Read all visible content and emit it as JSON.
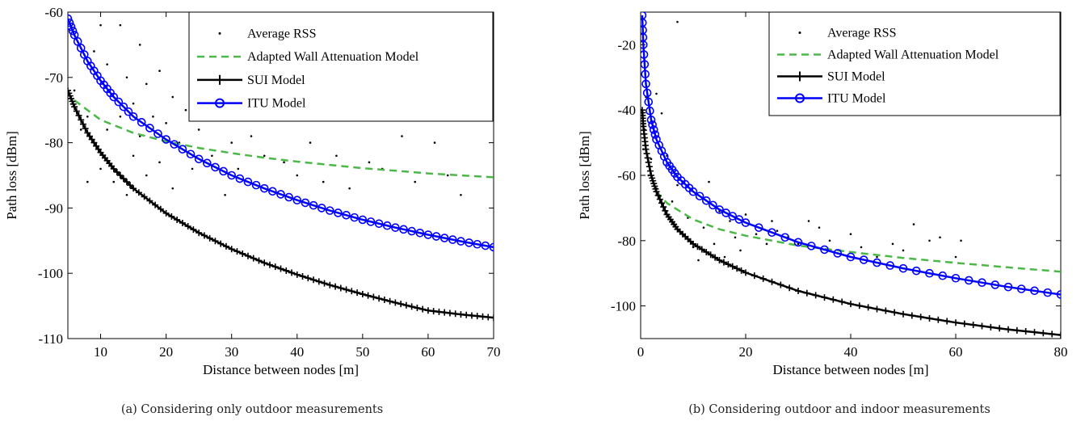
{
  "chart_data": [
    {
      "type": "line",
      "caption": "(a) Considering only outdoor measurements",
      "xlabel": "Distance between nodes [m]",
      "ylabel": "Path loss [dBm]",
      "xlim": [
        5,
        70
      ],
      "ylim": [
        -110,
        -60
      ],
      "xticks": [
        10,
        20,
        30,
        40,
        50,
        60,
        70
      ],
      "yticks": [
        -60,
        -70,
        -80,
        -90,
        -100,
        -110
      ],
      "legend_position": "top-right",
      "grid": false,
      "series": [
        {
          "name": "Average RSS",
          "kind": "scatter",
          "color": "#000000",
          "points": [
            [
              6,
              -72
            ],
            [
              7,
              -78
            ],
            [
              8,
              -76
            ],
            [
              8,
              -86
            ],
            [
              9,
              -66
            ],
            [
              9,
              -80
            ],
            [
              10,
              -62
            ],
            [
              10,
              -84
            ],
            [
              11,
              -68
            ],
            [
              11,
              -78
            ],
            [
              12,
              -73
            ],
            [
              12,
              -86
            ],
            [
              13,
              -62
            ],
            [
              13,
              -76
            ],
            [
              14,
              -70
            ],
            [
              14,
              -88
            ],
            [
              15,
              -74
            ],
            [
              15,
              -82
            ],
            [
              16,
              -65
            ],
            [
              16,
              -79
            ],
            [
              17,
              -71
            ],
            [
              17,
              -85
            ],
            [
              18,
              -76
            ],
            [
              19,
              -69
            ],
            [
              19,
              -83
            ],
            [
              20,
              -77
            ],
            [
              21,
              -73
            ],
            [
              21,
              -87
            ],
            [
              22,
              -80
            ],
            [
              23,
              -75
            ],
            [
              24,
              -84
            ],
            [
              25,
              -78
            ],
            [
              26,
              -73
            ],
            [
              27,
              -82
            ],
            [
              28,
              -76
            ],
            [
              29,
              -88
            ],
            [
              30,
              -80
            ],
            [
              31,
              -84
            ],
            [
              33,
              -79
            ],
            [
              35,
              -82
            ],
            [
              36,
              -76
            ],
            [
              38,
              -83
            ],
            [
              40,
              -85
            ],
            [
              42,
              -80
            ],
            [
              44,
              -86
            ],
            [
              46,
              -82
            ],
            [
              48,
              -87
            ],
            [
              51,
              -83
            ],
            [
              53,
              -84
            ],
            [
              56,
              -79
            ],
            [
              58,
              -86
            ],
            [
              61,
              -80
            ],
            [
              63,
              -85
            ],
            [
              65,
              -88
            ]
          ]
        },
        {
          "name": "Adapted Wall Attenuation Model",
          "kind": "dashed",
          "color": "#4cb848",
          "x": [
            6,
            10,
            15,
            20,
            25,
            30,
            35,
            40,
            45,
            50,
            55,
            60,
            65,
            70
          ],
          "y": [
            -73.5,
            -76.5,
            -78.5,
            -79.8,
            -80.8,
            -81.6,
            -82.3,
            -82.9,
            -83.4,
            -83.9,
            -84.3,
            -84.7,
            -85.0,
            -85.3
          ]
        },
        {
          "name": "SUI Model",
          "kind": "line-plus",
          "color": "#000000",
          "x": [
            5,
            6,
            8,
            10,
            12,
            15,
            20,
            25,
            30,
            35,
            40,
            45,
            50,
            55,
            60,
            65,
            70
          ],
          "y": [
            -72,
            -74.5,
            -78.5,
            -81.5,
            -84,
            -87,
            -90.8,
            -93.8,
            -96.3,
            -98.4,
            -100.2,
            -101.8,
            -103.2,
            -104.5,
            -105.7,
            -106.3,
            -106.8
          ]
        },
        {
          "name": "ITU Model",
          "kind": "line-circle",
          "color": "#0000ff",
          "x": [
            5,
            6,
            8,
            10,
            12,
            15,
            20,
            25,
            30,
            35,
            40,
            45,
            50,
            55,
            60,
            65,
            70
          ],
          "y": [
            -61,
            -63.5,
            -67.5,
            -70.5,
            -73,
            -76,
            -79.5,
            -82.5,
            -85,
            -87,
            -88.8,
            -90.4,
            -91.8,
            -93,
            -94.1,
            -95.1,
            -96
          ]
        }
      ]
    },
    {
      "type": "line",
      "caption": "(b) Considering outdoor and indoor measurements",
      "xlabel": "Distance between nodes [m]",
      "ylabel": "Path loss [dBm]",
      "xlim": [
        0,
        80
      ],
      "ylim": [
        -110,
        -10
      ],
      "xticks": [
        0,
        20,
        40,
        60,
        80
      ],
      "yticks": [
        -20,
        -40,
        -60,
        -80,
        -100
      ],
      "legend_position": "top-right",
      "grid": false,
      "series": [
        {
          "name": "Average RSS",
          "kind": "scatter",
          "color": "#000000",
          "points": [
            [
              0.2,
              -40
            ],
            [
              0.5,
              -52
            ],
            [
              0.8,
              -46
            ],
            [
              1,
              -36
            ],
            [
              1.5,
              -60
            ],
            [
              2,
              -55
            ],
            [
              3,
              -35
            ],
            [
              3,
              -64
            ],
            [
              4,
              -41
            ],
            [
              5,
              -54
            ],
            [
              6,
              -68
            ],
            [
              7,
              -13
            ],
            [
              7,
              -63
            ],
            [
              8,
              -78
            ],
            [
              9,
              -73
            ],
            [
              10,
              -82
            ],
            [
              11,
              -86
            ],
            [
              12,
              -76
            ],
            [
              13,
              -62
            ],
            [
              14,
              -81
            ],
            [
              15,
              -71
            ],
            [
              16,
              -85
            ],
            [
              17,
              -74
            ],
            [
              18,
              -79
            ],
            [
              19,
              -83
            ],
            [
              20,
              -72
            ],
            [
              22,
              -78
            ],
            [
              24,
              -81
            ],
            [
              25,
              -74
            ],
            [
              26,
              -77
            ],
            [
              28,
              -79
            ],
            [
              30,
              -81
            ],
            [
              32,
              -74
            ],
            [
              34,
              -76
            ],
            [
              36,
              -80
            ],
            [
              38,
              -83
            ],
            [
              40,
              -78
            ],
            [
              42,
              -82
            ],
            [
              45,
              -85
            ],
            [
              48,
              -81
            ],
            [
              50,
              -83
            ],
            [
              52,
              -75
            ],
            [
              55,
              -80
            ],
            [
              57,
              -79
            ],
            [
              60,
              -85
            ],
            [
              61,
              -80
            ]
          ]
        },
        {
          "name": "Adapted Wall Attenuation Model",
          "kind": "dashed",
          "color": "#4cb848",
          "x": [
            3,
            5,
            10,
            15,
            20,
            30,
            40,
            50,
            60,
            70,
            80
          ],
          "y": [
            -65,
            -68.5,
            -73.5,
            -76.5,
            -78.5,
            -81.5,
            -83.5,
            -85.3,
            -86.8,
            -88.2,
            -89.5
          ]
        },
        {
          "name": "SUI Model",
          "kind": "line-plus",
          "color": "#000000",
          "x": [
            0.3,
            0.5,
            1,
            2,
            3,
            5,
            7,
            10,
            15,
            20,
            30,
            40,
            50,
            60,
            70,
            80
          ],
          "y": [
            -40,
            -45,
            -52,
            -60,
            -65,
            -72,
            -76.5,
            -81,
            -86,
            -89.8,
            -95.4,
            -99.4,
            -102.5,
            -105.1,
            -107.2,
            -108.9
          ]
        },
        {
          "name": "ITU Model",
          "kind": "line-circle",
          "color": "#0000ff",
          "x": [
            0.3,
            0.5,
            1,
            2,
            3,
            5,
            7,
            10,
            15,
            20,
            30,
            40,
            50,
            60,
            70,
            80
          ],
          "y": [
            -11,
            -20,
            -32,
            -43,
            -49,
            -56,
            -60.5,
            -65,
            -70.5,
            -74.5,
            -80.5,
            -85,
            -88.5,
            -91.5,
            -94.2,
            -96.5
          ]
        }
      ]
    }
  ]
}
